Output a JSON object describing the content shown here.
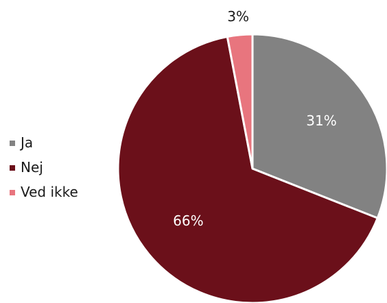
{
  "chart_data": {
    "type": "pie",
    "title": "",
    "slices": [
      {
        "label": "Ja",
        "value": 31,
        "display": "31%",
        "color": "#828282",
        "label_color": "#ffffff"
      },
      {
        "label": "Nej",
        "value": 66,
        "display": "66%",
        "color": "#6b101a",
        "label_color": "#ffffff"
      },
      {
        "label": "Ved ikke",
        "value": 3,
        "display": "3%",
        "color": "#e8757e",
        "label_color": "#1a1a1a"
      }
    ],
    "legend_position": "left",
    "start_angle": "12 o'clock",
    "direction": "clockwise"
  }
}
